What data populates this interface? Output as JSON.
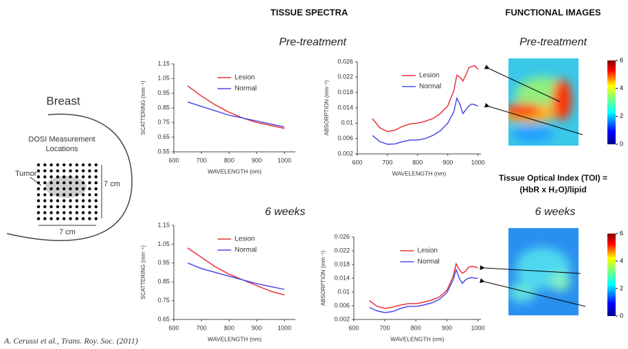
{
  "headings": {
    "tissue_spectra": "TISSUE SPECTRA",
    "functional_images": "FUNCTIONAL IMAGES"
  },
  "pre_label": "Pre-treatment",
  "weeks_label": "6 weeks",
  "toi": {
    "line1": "Tissue Optical Index (TOI) =",
    "line2": "(HbR x H₂O)/lipid"
  },
  "breast": {
    "title": "Breast",
    "measure1": "DOSI Measurement",
    "measure2": "Locations",
    "tumor": "Tumor",
    "width": "7 cm",
    "height": "7 cm"
  },
  "citation": "A. Cerussi et al., Trans. Roy. Soc. (2011)",
  "colorbars": [
    {
      "lim": [
        0,
        6
      ],
      "ticks": [
        0,
        2,
        4,
        6
      ]
    },
    {
      "lim": [
        0,
        6
      ],
      "ticks": [
        0,
        2,
        4,
        6
      ]
    }
  ],
  "chart_data": [
    {
      "type": "line",
      "xlabel": "WAVELENGTH (nm)",
      "ylabel": "SCATTERING (mm⁻¹)",
      "x": [
        650,
        700,
        750,
        800,
        850,
        900,
        950,
        1000
      ],
      "series": [
        {
          "name": "Lesion",
          "color": "#e8323a",
          "values": [
            1.0,
            0.93,
            0.87,
            0.82,
            0.78,
            0.75,
            0.73,
            0.71
          ]
        },
        {
          "name": "Normal",
          "color": "#4a4ae8",
          "values": [
            0.89,
            0.86,
            0.83,
            0.8,
            0.78,
            0.76,
            0.74,
            0.72
          ]
        }
      ],
      "xlim": [
        600,
        1040
      ],
      "xticks": [
        600,
        700,
        800,
        900,
        1000
      ],
      "ylim": [
        0.55,
        1.15
      ],
      "yticks": [
        0.55,
        0.65,
        0.75,
        0.85,
        0.95,
        1.05,
        1.15
      ],
      "legend": "upper center"
    },
    {
      "type": "line",
      "xlabel": "WAVELENGTH (nm)",
      "ylabel": "ABSORPTION (mm⁻¹)",
      "x": [
        650,
        675,
        700,
        725,
        750,
        775,
        800,
        825,
        850,
        875,
        900,
        920,
        930,
        940,
        950,
        960,
        970,
        980,
        990,
        1000
      ],
      "series": [
        {
          "name": "Lesion",
          "color": "#e8323a",
          "values": [
            0.0112,
            0.0088,
            0.0078,
            0.0082,
            0.0092,
            0.0098,
            0.01,
            0.0105,
            0.0112,
            0.0125,
            0.0145,
            0.0185,
            0.0225,
            0.022,
            0.021,
            0.0225,
            0.0245,
            0.0248,
            0.025,
            0.024
          ]
        },
        {
          "name": "Normal",
          "color": "#4a4ae8",
          "values": [
            0.0068,
            0.0052,
            0.0045,
            0.0046,
            0.0052,
            0.0056,
            0.0056,
            0.006,
            0.0068,
            0.008,
            0.01,
            0.013,
            0.0165,
            0.015,
            0.0125,
            0.0135,
            0.0145,
            0.015,
            0.0148,
            0.0145
          ]
        }
      ],
      "xlim": [
        600,
        1010
      ],
      "xticks": [
        600,
        700,
        800,
        900,
        1000
      ],
      "ylim": [
        0.002,
        0.026
      ],
      "yticks": [
        0.002,
        0.006,
        0.01,
        0.014,
        0.018,
        0.022,
        0.026
      ],
      "legend": "upper center"
    },
    {
      "type": "line",
      "xlabel": "WAVELENGTH (nm)",
      "ylabel": "SCATTERING (mm⁻¹)",
      "x": [
        650,
        700,
        750,
        800,
        850,
        900,
        950,
        1000
      ],
      "series": [
        {
          "name": "Lesion",
          "color": "#e8323a",
          "values": [
            1.03,
            0.98,
            0.93,
            0.89,
            0.86,
            0.83,
            0.8,
            0.78
          ]
        },
        {
          "name": "Normal",
          "color": "#4a4ae8",
          "values": [
            0.95,
            0.92,
            0.9,
            0.88,
            0.86,
            0.84,
            0.825,
            0.81
          ]
        }
      ],
      "xlim": [
        600,
        1040
      ],
      "xticks": [
        600,
        700,
        800,
        900,
        1000
      ],
      "ylim": [
        0.65,
        1.15
      ],
      "yticks": [
        0.65,
        0.75,
        0.85,
        0.95,
        1.05,
        1.15
      ],
      "legend": "upper center"
    },
    {
      "type": "line",
      "xlabel": "WAVELENGTH (nm)",
      "ylabel": "ABSORPTION (mm⁻¹)",
      "x": [
        650,
        675,
        700,
        725,
        750,
        775,
        800,
        825,
        850,
        875,
        900,
        920,
        930,
        940,
        950,
        960,
        970,
        980,
        990,
        1000
      ],
      "series": [
        {
          "name": "Lesion",
          "color": "#e8323a",
          "values": [
            0.0075,
            0.0058,
            0.0052,
            0.0056,
            0.0062,
            0.0066,
            0.0066,
            0.007,
            0.0076,
            0.0085,
            0.0105,
            0.0145,
            0.0182,
            0.0165,
            0.0155,
            0.016,
            0.0172,
            0.0175,
            0.0173,
            0.017
          ]
        },
        {
          "name": "Normal",
          "color": "#4a4ae8",
          "values": [
            0.0055,
            0.0045,
            0.004,
            0.0043,
            0.0052,
            0.0058,
            0.0058,
            0.0062,
            0.0068,
            0.0078,
            0.0098,
            0.0135,
            0.0165,
            0.014,
            0.0125,
            0.0135,
            0.014,
            0.0142,
            0.014,
            0.014
          ]
        }
      ],
      "xlim": [
        600,
        1010
      ],
      "xticks": [
        600,
        700,
        800,
        900,
        1000
      ],
      "ylim": [
        0.002,
        0.026
      ],
      "yticks": [
        0.002,
        0.006,
        0.01,
        0.014,
        0.018,
        0.022,
        0.026
      ],
      "legend": "upper center"
    }
  ]
}
